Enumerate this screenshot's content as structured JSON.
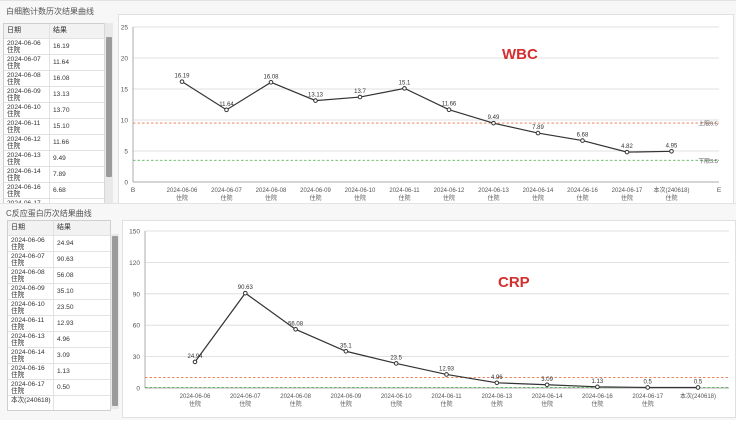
{
  "top_panel": {
    "title": "白细胞计数历次结果曲线",
    "table": {
      "headers": [
        "日期",
        "结果"
      ],
      "rows": [
        {
          "date": "2024-06-06",
          "type": "住院",
          "result": "16.19"
        },
        {
          "date": "2024-06-07",
          "type": "住院",
          "result": "11.64"
        },
        {
          "date": "2024-06-08",
          "type": "住院",
          "result": "16.08"
        },
        {
          "date": "2024-06-09",
          "type": "住院",
          "result": "13.13"
        },
        {
          "date": "2024-06-10",
          "type": "住院",
          "result": "13.70"
        },
        {
          "date": "2024-06-11",
          "type": "住院",
          "result": "15.10"
        },
        {
          "date": "2024-06-12",
          "type": "住院",
          "result": "11.66"
        },
        {
          "date": "2024-06-13",
          "type": "住院",
          "result": "9.49"
        },
        {
          "date": "2024-06-14",
          "type": "住院",
          "result": "7.89"
        },
        {
          "date": "2024-06-16",
          "type": "住院",
          "result": "6.68"
        },
        {
          "date": "2024-06-17",
          "type": "住院",
          "result": ""
        }
      ]
    }
  },
  "bottom_panel": {
    "title": "C反应蛋白历次结果曲线",
    "table": {
      "headers": [
        "日期",
        "结果"
      ],
      "rows": [
        {
          "date": "2024-06-06",
          "type": "住院",
          "result": "24.94"
        },
        {
          "date": "2024-06-07",
          "type": "住院",
          "result": "90.63"
        },
        {
          "date": "2024-06-08",
          "type": "住院",
          "result": "56.08"
        },
        {
          "date": "2024-06-09",
          "type": "住院",
          "result": "35.10"
        },
        {
          "date": "2024-06-10",
          "type": "住院",
          "result": "23.50"
        },
        {
          "date": "2024-06-11",
          "type": "住院",
          "result": "12.93"
        },
        {
          "date": "2024-06-13",
          "type": "住院",
          "result": "4.96"
        },
        {
          "date": "2024-06-14",
          "type": "住院",
          "result": "3.09"
        },
        {
          "date": "2024-06-16",
          "type": "住院",
          "result": "1.13"
        },
        {
          "date": "2024-06-17",
          "type": "住院",
          "result": "0.50"
        },
        {
          "date": "本次(240618)",
          "type": "",
          "result": ""
        }
      ]
    }
  },
  "chart_data": [
    {
      "type": "line",
      "title": "WBC",
      "title_color": "#d32f2f",
      "categories": [
        "2024-06-06",
        "2024-06-07",
        "2024-06-08",
        "2024-06-09",
        "2024-06-10",
        "2024-06-11",
        "2024-06-12",
        "2024-06-13",
        "2024-06-14",
        "2024-06-16",
        "2024-06-17",
        "本次(240618)"
      ],
      "sublabels": [
        "住院",
        "住院",
        "住院",
        "住院",
        "住院",
        "住院",
        "住院",
        "住院",
        "住院",
        "住院",
        "住院",
        "住院"
      ],
      "values": [
        16.19,
        11.64,
        16.08,
        13.13,
        13.7,
        15.1,
        11.66,
        9.49,
        7.89,
        6.68,
        4.82,
        4.95
      ],
      "value_labels": [
        "16.19",
        "11.64",
        "16.08",
        "13.13",
        "13.7",
        "15.1",
        "11.66",
        "9.49",
        "7.89",
        "6.68",
        "4.82",
        "4.95"
      ],
      "ylim": [
        0,
        25
      ],
      "yticks": [
        "0",
        "5",
        "10",
        "15",
        "20",
        "25"
      ],
      "x_end_labels": [
        "B",
        "E"
      ],
      "reference_lines": [
        {
          "label": "上限9.5",
          "value": 9.5,
          "color": "#e8774a"
        },
        {
          "label": "下限3.5",
          "value": 3.5,
          "color": "#5cb85c"
        }
      ],
      "line_color": "#333333"
    },
    {
      "type": "line",
      "title": "CRP",
      "title_color": "#d32f2f",
      "categories": [
        "2024-06-06",
        "2024-06-07",
        "2024-06-08",
        "2024-06-09",
        "2024-06-10",
        "2024-06-11",
        "2024-06-13",
        "2024-06-14",
        "2024-06-16",
        "2024-06-17",
        "本次(240618)"
      ],
      "sublabels": [
        "住院",
        "住院",
        "住院",
        "住院",
        "住院",
        "住院",
        "住院",
        "住院",
        "住院",
        "住院",
        ""
      ],
      "values": [
        24.94,
        90.63,
        56.08,
        35.1,
        23.5,
        12.93,
        4.96,
        3.09,
        1.13,
        0.5,
        0.5
      ],
      "value_labels": [
        "24.94",
        "90.63",
        "56.08",
        "35.1",
        "23.5",
        "12.93",
        "4.96",
        "3.09",
        "1.13",
        "0.5",
        "0.5"
      ],
      "ylim": [
        0,
        150
      ],
      "yticks": [
        "0",
        "30",
        "60",
        "90",
        "120",
        "150"
      ],
      "reference_lines": [
        {
          "label": "",
          "value": 10,
          "color": "#e8774a"
        },
        {
          "label": "",
          "value": 0.5,
          "color": "#5cb85c"
        }
      ],
      "line_color": "#333333"
    }
  ]
}
